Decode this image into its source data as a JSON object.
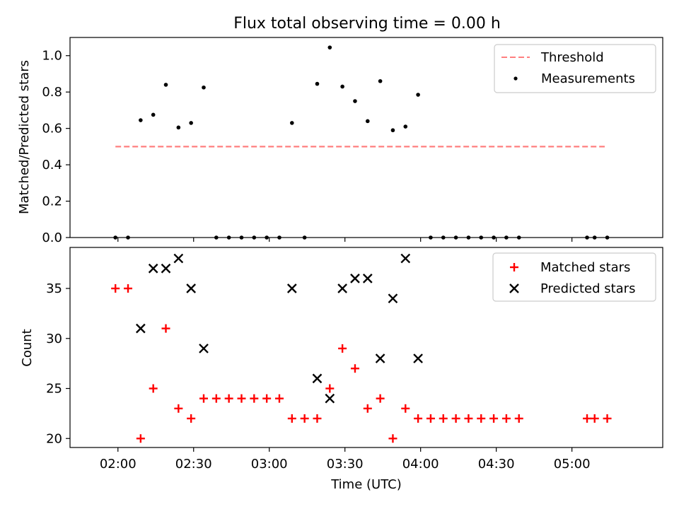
{
  "chart_data": [
    {
      "type": "scatter",
      "title": "Flux total observing time = 0.00 h",
      "xlabel": "",
      "ylabel": "Matched/Predicted stars",
      "ylim": [
        0,
        1.1
      ],
      "yticks": [
        "0.0",
        "0.2",
        "0.4",
        "0.6",
        "0.8",
        "1.0"
      ],
      "ytick_values": [
        0,
        0.2,
        0.4,
        0.6,
        0.8,
        1.0
      ],
      "legend_position": "top-right",
      "series": [
        {
          "name": "Threshold",
          "kind": "dashed-line",
          "color": "#ff7f7f",
          "points": [
            [
              "01:59",
              0.5
            ],
            [
              "05:13",
              0.5
            ]
          ]
        },
        {
          "name": "Measurements",
          "kind": "dot",
          "color": "#000000",
          "points": [
            [
              "01:59",
              0.0
            ],
            [
              "02:04",
              0.0
            ],
            [
              "02:09",
              0.645
            ],
            [
              "02:14",
              0.675
            ],
            [
              "02:19",
              0.84
            ],
            [
              "02:24",
              0.605
            ],
            [
              "02:29",
              0.63
            ],
            [
              "02:34",
              0.825
            ],
            [
              "02:39",
              0.0
            ],
            [
              "02:44",
              0.0
            ],
            [
              "02:49",
              0.0
            ],
            [
              "02:54",
              0.0
            ],
            [
              "02:59",
              0.0
            ],
            [
              "03:04",
              0.0
            ],
            [
              "03:09",
              0.63
            ],
            [
              "03:14",
              0.0
            ],
            [
              "03:19",
              0.845
            ],
            [
              "03:24",
              1.045
            ],
            [
              "03:29",
              0.83
            ],
            [
              "03:34",
              0.75
            ],
            [
              "03:39",
              0.64
            ],
            [
              "03:44",
              0.86
            ],
            [
              "03:49",
              0.59
            ],
            [
              "03:54",
              0.61
            ],
            [
              "03:59",
              0.785
            ],
            [
              "04:04",
              0.0
            ],
            [
              "04:09",
              0.0
            ],
            [
              "04:14",
              0.0
            ],
            [
              "04:19",
              0.0
            ],
            [
              "04:24",
              0.0
            ],
            [
              "04:29",
              0.0
            ],
            [
              "04:34",
              0.0
            ],
            [
              "04:39",
              0.0
            ],
            [
              "05:06",
              0.0
            ],
            [
              "05:09",
              0.0
            ],
            [
              "05:14",
              0.0
            ]
          ]
        }
      ]
    },
    {
      "type": "scatter",
      "title": "",
      "xlabel": "Time (UTC)",
      "ylabel": "Count",
      "ylim": [
        19.1,
        39.1
      ],
      "yticks": [
        "20",
        "25",
        "30",
        "35"
      ],
      "ytick_values": [
        20,
        25,
        30,
        35
      ],
      "x_range": [
        "01:41",
        "05:36"
      ],
      "xticks": [
        "02:00",
        "02:30",
        "03:00",
        "03:30",
        "04:00",
        "04:30",
        "05:00"
      ],
      "legend_position": "top-right",
      "series": [
        {
          "name": "Matched stars",
          "kind": "plus",
          "color": "#ff0000",
          "points": [
            [
              "01:59",
              35
            ],
            [
              "02:04",
              35
            ],
            [
              "02:09",
              20
            ],
            [
              "02:14",
              25
            ],
            [
              "02:19",
              31
            ],
            [
              "02:24",
              23
            ],
            [
              "02:29",
              22
            ],
            [
              "02:34",
              24
            ],
            [
              "02:39",
              24
            ],
            [
              "02:44",
              24
            ],
            [
              "02:49",
              24
            ],
            [
              "02:54",
              24
            ],
            [
              "02:59",
              24
            ],
            [
              "03:04",
              24
            ],
            [
              "03:09",
              22
            ],
            [
              "03:14",
              22
            ],
            [
              "03:19",
              22
            ],
            [
              "03:24",
              25
            ],
            [
              "03:29",
              29
            ],
            [
              "03:34",
              27
            ],
            [
              "03:39",
              23
            ],
            [
              "03:44",
              24
            ],
            [
              "03:49",
              20
            ],
            [
              "03:54",
              23
            ],
            [
              "03:59",
              22
            ],
            [
              "04:04",
              22
            ],
            [
              "04:09",
              22
            ],
            [
              "04:14",
              22
            ],
            [
              "04:19",
              22
            ],
            [
              "04:24",
              22
            ],
            [
              "04:29",
              22
            ],
            [
              "04:34",
              22
            ],
            [
              "04:39",
              22
            ],
            [
              "05:06",
              22
            ],
            [
              "05:09",
              22
            ],
            [
              "05:14",
              22
            ]
          ]
        },
        {
          "name": "Predicted stars",
          "kind": "cross",
          "color": "#000000",
          "points": [
            [
              "02:09",
              31
            ],
            [
              "02:14",
              37
            ],
            [
              "02:19",
              37
            ],
            [
              "02:24",
              38
            ],
            [
              "02:29",
              35
            ],
            [
              "02:34",
              29
            ],
            [
              "03:09",
              35
            ],
            [
              "03:19",
              26
            ],
            [
              "03:24",
              24
            ],
            [
              "03:29",
              35
            ],
            [
              "03:34",
              36
            ],
            [
              "03:39",
              36
            ],
            [
              "03:44",
              28
            ],
            [
              "03:49",
              34
            ],
            [
              "03:54",
              38
            ],
            [
              "03:59",
              28
            ]
          ]
        }
      ]
    }
  ]
}
